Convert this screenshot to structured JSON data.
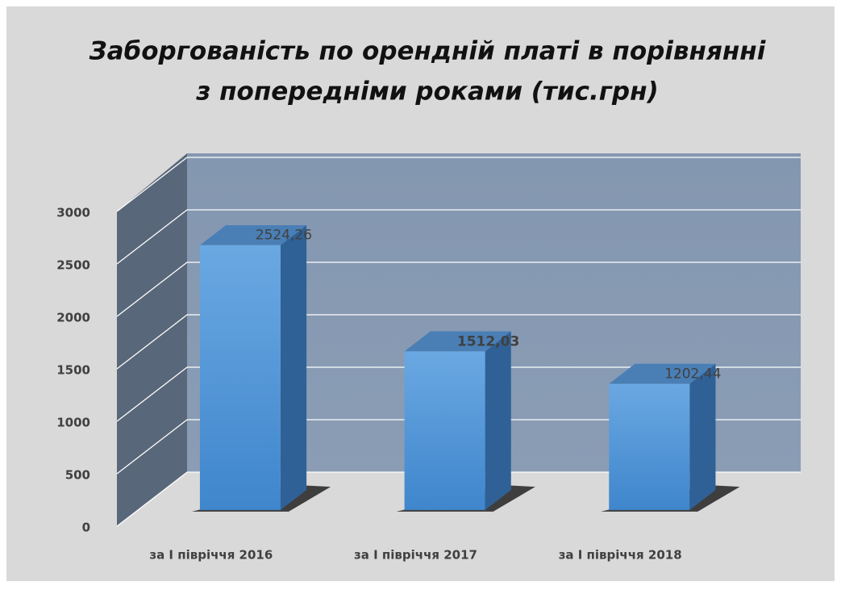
{
  "chart_data": {
    "type": "bar3d",
    "title": [
      "Заборгованість по орендній платі в порівнянні",
      "з попередніми роками (тис.грн)"
    ],
    "categories": [
      "за І півріччя 2016",
      "за І півріччя 2017",
      "за І півріччя 2018"
    ],
    "values": [
      2524.26,
      1512.03,
      1202.44
    ],
    "value_labels": [
      "2524,26",
      "1512,03",
      "1202,44"
    ],
    "color": "#5b9bd5",
    "ylim": [
      0,
      3000
    ],
    "yticks": [
      0,
      500,
      1000,
      1500,
      2000,
      2500,
      3000
    ],
    "grid": true
  }
}
